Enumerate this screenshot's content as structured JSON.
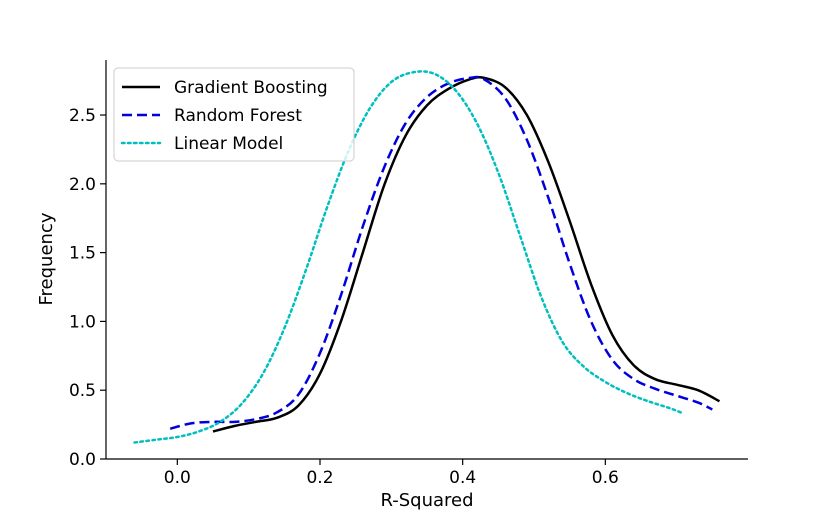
{
  "chart_data": {
    "type": "line",
    "title": "",
    "xlabel": "R-Squared",
    "ylabel": "Frequency",
    "xlim": [
      -0.1,
      0.8
    ],
    "ylim": [
      0.0,
      2.9
    ],
    "xticks": [
      0.0,
      0.2,
      0.4,
      0.6
    ],
    "yticks": [
      0.0,
      0.5,
      1.0,
      1.5,
      2.0,
      2.5
    ],
    "xtick_labels": [
      "0.0",
      "0.2",
      "0.4",
      "0.6"
    ],
    "ytick_labels": [
      "0.0",
      "0.5",
      "1.0",
      "1.5",
      "2.0",
      "2.5"
    ],
    "grid": false,
    "legend_position": "top-left",
    "series": [
      {
        "name": "Gradient Boosting",
        "color": "#000000",
        "style": "solid",
        "x": [
          0.05,
          0.08,
          0.11,
          0.14,
          0.17,
          0.2,
          0.23,
          0.26,
          0.29,
          0.32,
          0.35,
          0.38,
          0.41,
          0.43,
          0.46,
          0.49,
          0.52,
          0.55,
          0.58,
          0.61,
          0.64,
          0.67,
          0.7,
          0.73,
          0.76
        ],
        "y": [
          0.2,
          0.24,
          0.27,
          0.3,
          0.39,
          0.62,
          1.01,
          1.5,
          1.99,
          2.35,
          2.57,
          2.69,
          2.76,
          2.77,
          2.7,
          2.5,
          2.16,
          1.73,
          1.27,
          0.9,
          0.68,
          0.58,
          0.54,
          0.5,
          0.42
        ]
      },
      {
        "name": "Random Forest",
        "color": "#0000dd",
        "style": "dashed",
        "x": [
          -0.01,
          0.02,
          0.05,
          0.08,
          0.11,
          0.14,
          0.17,
          0.2,
          0.23,
          0.26,
          0.29,
          0.32,
          0.35,
          0.38,
          0.41,
          0.43,
          0.46,
          0.49,
          0.52,
          0.55,
          0.58,
          0.61,
          0.64,
          0.67,
          0.7,
          0.73,
          0.75
        ],
        "y": [
          0.22,
          0.26,
          0.27,
          0.27,
          0.29,
          0.34,
          0.47,
          0.77,
          1.2,
          1.69,
          2.12,
          2.44,
          2.63,
          2.73,
          2.77,
          2.76,
          2.62,
          2.32,
          1.9,
          1.42,
          1.0,
          0.72,
          0.58,
          0.51,
          0.46,
          0.41,
          0.36
        ]
      },
      {
        "name": "Linear Model",
        "color": "#00bfbf",
        "style": "dotted",
        "x": [
          -0.06,
          -0.03,
          0.0,
          0.03,
          0.06,
          0.09,
          0.12,
          0.15,
          0.18,
          0.21,
          0.24,
          0.27,
          0.3,
          0.33,
          0.36,
          0.39,
          0.42,
          0.45,
          0.48,
          0.51,
          0.54,
          0.57,
          0.6,
          0.63,
          0.66,
          0.69,
          0.71
        ],
        "y": [
          0.12,
          0.14,
          0.16,
          0.2,
          0.27,
          0.4,
          0.62,
          0.95,
          1.37,
          1.83,
          2.24,
          2.55,
          2.74,
          2.81,
          2.8,
          2.68,
          2.44,
          2.08,
          1.63,
          1.18,
          0.85,
          0.67,
          0.56,
          0.48,
          0.42,
          0.37,
          0.33
        ]
      }
    ]
  }
}
